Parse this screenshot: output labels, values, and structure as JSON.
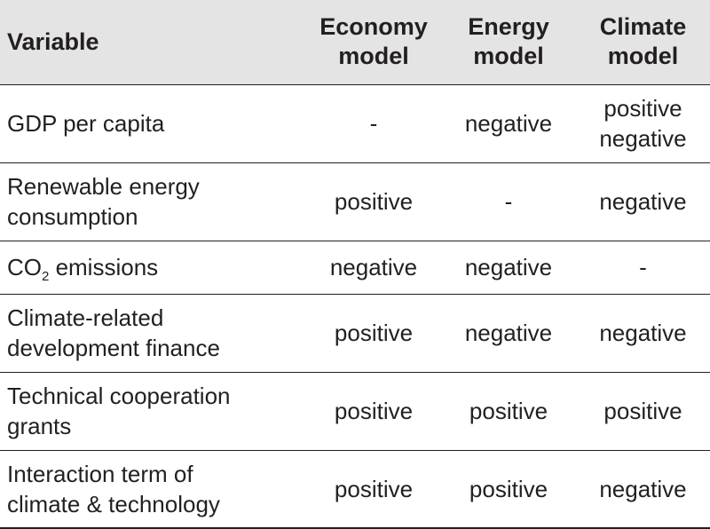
{
  "header": {
    "variable": "Variable",
    "economy_line1": "Economy",
    "economy_line2": "model",
    "energy_line1": "Energy",
    "energy_line2": "model",
    "climate_line1": "Climate",
    "climate_line2": "model"
  },
  "rows": [
    {
      "variable_line1": "GDP per capita",
      "economy": "-",
      "energy": "negative",
      "climate_line1": "positive",
      "climate_line2": "negative"
    },
    {
      "variable_line1": "Renewable energy",
      "variable_line2": "consumption",
      "economy": "positive",
      "energy": "-",
      "climate": "negative"
    },
    {
      "variable_prefix": "CO",
      "variable_sub": "2",
      "variable_suffix": " emissions",
      "economy": "negative",
      "energy": "negative",
      "climate": "-"
    },
    {
      "variable_line1": "Climate-related",
      "variable_line2": "development finance",
      "economy": "positive",
      "energy": "negative",
      "climate": "negative"
    },
    {
      "variable_line1": "Technical cooperation",
      "variable_line2": "grants",
      "economy": "positive",
      "energy": "positive",
      "climate": "positive"
    },
    {
      "variable_line1": "Interaction term of",
      "variable_line2": "climate & technology",
      "economy": "positive",
      "energy": "positive",
      "climate": "negative"
    }
  ]
}
